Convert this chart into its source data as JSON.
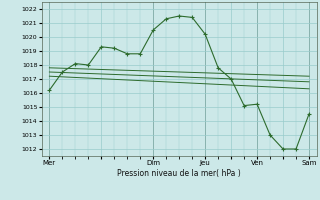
{
  "background_color": "#cce8e8",
  "grid_color": "#99cccc",
  "line_color": "#2d6b2d",
  "marker_color": "#2d6b2d",
  "title": "Pression niveau de la mer( hPa )",
  "ylim": [
    1011.5,
    1022.5
  ],
  "yticks": [
    1012,
    1013,
    1014,
    1015,
    1016,
    1017,
    1018,
    1019,
    1020,
    1021,
    1022
  ],
  "day_labels": [
    "Mer",
    "",
    "Dim",
    "Jeu",
    "",
    "Ven",
    "",
    "Sam"
  ],
  "day_positions": [
    0,
    2,
    4,
    6,
    7,
    8,
    9,
    10
  ],
  "vline_positions": [
    0,
    4,
    6,
    8,
    10
  ],
  "xlim": [
    -0.3,
    10.3
  ],
  "series1_x": [
    0,
    0.5,
    1,
    1.5,
    2,
    2.5,
    3,
    3.5,
    4,
    4.5,
    5,
    5.5,
    6,
    6.5,
    7,
    7.5,
    8,
    8.5,
    9,
    9.5,
    10
  ],
  "series1_y": [
    1016.2,
    1017.5,
    1018.1,
    1018.0,
    1019.3,
    1019.2,
    1018.8,
    1018.8,
    1020.5,
    1021.3,
    1021.5,
    1021.4,
    1020.2,
    1017.8,
    1017.0,
    1015.1,
    1015.2,
    1013.0,
    1012.0,
    1012.0,
    1014.5
  ],
  "series2_x": [
    0,
    10
  ],
  "series2_y": [
    1017.8,
    1017.2
  ],
  "series3_x": [
    0,
    10
  ],
  "series3_y": [
    1017.5,
    1016.8
  ],
  "series4_x": [
    0,
    10
  ],
  "series4_y": [
    1017.2,
    1016.3
  ]
}
